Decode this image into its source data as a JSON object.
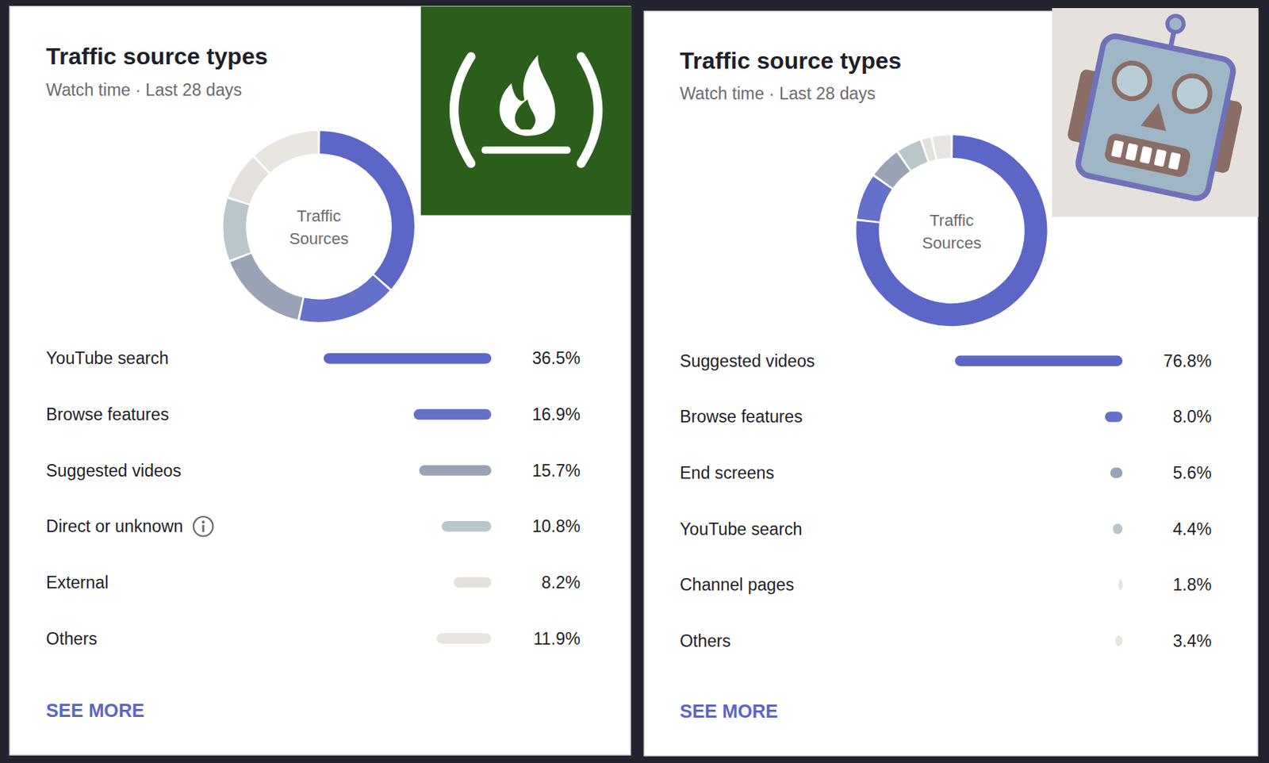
{
  "chart_data": [
    {
      "type": "pie",
      "title": "Traffic source types",
      "subtitle": "Watch time · Last 28 days",
      "center_label": [
        "Traffic",
        "Sources"
      ],
      "categories": [
        "YouTube search",
        "Browse features",
        "Suggested videos",
        "Direct or unknown",
        "External",
        "Others"
      ],
      "values": [
        36.5,
        16.9,
        15.7,
        10.8,
        8.2,
        11.9
      ],
      "value_labels": [
        "36.5%",
        "16.9%",
        "15.7%",
        "10.8%",
        "8.2%",
        "11.9%"
      ],
      "colors": [
        "#5c66c6",
        "#6470c9",
        "#9aa2b6",
        "#b9c6ca",
        "#e4e0dc",
        "#e8e4e0"
      ],
      "data_labels": true,
      "link": "SEE MORE"
    },
    {
      "type": "pie",
      "title": "Traffic source types",
      "subtitle": "Watch time · Last 28 days",
      "center_label": [
        "Traffic",
        "Sources"
      ],
      "categories": [
        "Suggested videos",
        "Browse features",
        "End screens",
        "YouTube search",
        "Channel pages",
        "Others"
      ],
      "values": [
        76.8,
        8.0,
        5.6,
        4.4,
        1.8,
        3.4
      ],
      "value_labels": [
        "76.8%",
        "8.0%",
        "5.6%",
        "4.4%",
        "1.8%",
        "3.4%"
      ],
      "colors": [
        "#5c66c6",
        "#6470c9",
        "#9aa2b6",
        "#b9c6ca",
        "#e4e0dc",
        "#e8e4e0"
      ],
      "data_labels": true,
      "link": "SEE MORE"
    }
  ]
}
